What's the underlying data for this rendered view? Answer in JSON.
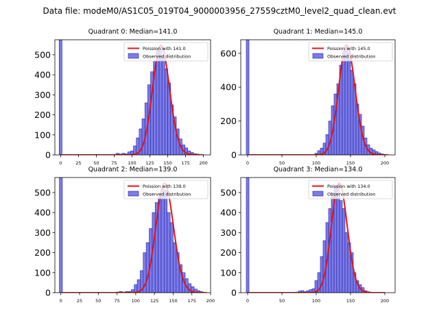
{
  "suptitle": "Data file: modeM0/AS1C05_019T04_9000003956_27559cztM0_level2_quad_clean.evt",
  "colors": {
    "bar_fill": "#7b7be8",
    "bar_edge": "#2020a0",
    "curve": "#e31212"
  },
  "chart_data": [
    {
      "type": "bar",
      "title": "Quadrant 0: Median=141.0",
      "xlim": [
        -8,
        210
      ],
      "ylim": [
        0,
        575
      ],
      "xticks": [
        0,
        25,
        50,
        75,
        100,
        125,
        150,
        175,
        200
      ],
      "yticks": [
        0,
        100,
        200,
        300,
        400,
        500
      ],
      "legend": {
        "position": "top-right",
        "curve_label": "Poission with 141.0",
        "bars_label": "Observed distribution"
      },
      "bin_width": 4,
      "bins": [
        {
          "x": 0,
          "count": 575
        },
        {
          "x": 76,
          "count": 3
        },
        {
          "x": 80,
          "count": 8
        },
        {
          "x": 84,
          "count": 4
        },
        {
          "x": 88,
          "count": 8
        },
        {
          "x": 92,
          "count": 5
        },
        {
          "x": 96,
          "count": 15
        },
        {
          "x": 100,
          "count": 20
        },
        {
          "x": 104,
          "count": 45
        },
        {
          "x": 108,
          "count": 85
        },
        {
          "x": 112,
          "count": 130
        },
        {
          "x": 116,
          "count": 180
        },
        {
          "x": 120,
          "count": 260
        },
        {
          "x": 124,
          "count": 350
        },
        {
          "x": 128,
          "count": 415
        },
        {
          "x": 132,
          "count": 470
        },
        {
          "x": 136,
          "count": 520
        },
        {
          "x": 140,
          "count": 540
        },
        {
          "x": 144,
          "count": 490
        },
        {
          "x": 148,
          "count": 430
        },
        {
          "x": 152,
          "count": 360
        },
        {
          "x": 156,
          "count": 250
        },
        {
          "x": 160,
          "count": 190
        },
        {
          "x": 164,
          "count": 130
        },
        {
          "x": 168,
          "count": 80
        },
        {
          "x": 172,
          "count": 50
        },
        {
          "x": 176,
          "count": 35
        },
        {
          "x": 180,
          "count": 20
        },
        {
          "x": 184,
          "count": 12
        },
        {
          "x": 188,
          "count": 6
        },
        {
          "x": 192,
          "count": 4
        },
        {
          "x": 196,
          "count": 2
        }
      ],
      "fit": {
        "mean": 141.0,
        "peak": 548,
        "x_range": [
          0,
          200
        ]
      }
    },
    {
      "type": "bar",
      "title": "Quadrant 1: Median=145.0",
      "xlim": [
        -10,
        215
      ],
      "ylim": [
        0,
        680
      ],
      "xticks": [
        0,
        50,
        100,
        150,
        200
      ],
      "yticks": [
        0,
        200,
        400,
        600
      ],
      "legend": {
        "position": "top-right",
        "curve_label": "Poission with 145.0",
        "bars_label": "Observed distribution"
      },
      "bin_width": 4,
      "bins": [
        {
          "x": 0,
          "count": 680
        },
        {
          "x": 100,
          "count": 10
        },
        {
          "x": 104,
          "count": 25
        },
        {
          "x": 108,
          "count": 40
        },
        {
          "x": 112,
          "count": 70
        },
        {
          "x": 116,
          "count": 120
        },
        {
          "x": 120,
          "count": 200
        },
        {
          "x": 124,
          "count": 290
        },
        {
          "x": 128,
          "count": 360
        },
        {
          "x": 132,
          "count": 420
        },
        {
          "x": 136,
          "count": 530
        },
        {
          "x": 140,
          "count": 600
        },
        {
          "x": 144,
          "count": 650
        },
        {
          "x": 148,
          "count": 600
        },
        {
          "x": 152,
          "count": 500
        },
        {
          "x": 156,
          "count": 420
        },
        {
          "x": 160,
          "count": 300
        },
        {
          "x": 164,
          "count": 240
        },
        {
          "x": 168,
          "count": 170
        },
        {
          "x": 172,
          "count": 100
        },
        {
          "x": 176,
          "count": 60
        },
        {
          "x": 180,
          "count": 40
        },
        {
          "x": 184,
          "count": 30
        },
        {
          "x": 188,
          "count": 20
        },
        {
          "x": 192,
          "count": 12
        },
        {
          "x": 196,
          "count": 6
        },
        {
          "x": 200,
          "count": 3
        }
      ],
      "fit": {
        "mean": 145.0,
        "peak": 648,
        "x_range": [
          0,
          205
        ]
      }
    },
    {
      "type": "bar",
      "title": "Quadrant 2: Median=139.0",
      "xlim": [
        -8,
        200
      ],
      "ylim": [
        0,
        575
      ],
      "xticks": [
        0,
        25,
        50,
        75,
        100,
        125,
        150,
        175,
        200
      ],
      "yticks": [
        0,
        100,
        200,
        300,
        400,
        500
      ],
      "legend": {
        "position": "top-right",
        "curve_label": "Poission with 139.0",
        "bars_label": "Observed distribution"
      },
      "bin_width": 4,
      "bins": [
        {
          "x": 0,
          "count": 575
        },
        {
          "x": 76,
          "count": 3
        },
        {
          "x": 80,
          "count": 6
        },
        {
          "x": 84,
          "count": 3
        },
        {
          "x": 88,
          "count": 6
        },
        {
          "x": 92,
          "count": 6
        },
        {
          "x": 96,
          "count": 15
        },
        {
          "x": 100,
          "count": 40
        },
        {
          "x": 104,
          "count": 65
        },
        {
          "x": 108,
          "count": 110
        },
        {
          "x": 112,
          "count": 200
        },
        {
          "x": 116,
          "count": 250
        },
        {
          "x": 120,
          "count": 320
        },
        {
          "x": 124,
          "count": 400
        },
        {
          "x": 128,
          "count": 450
        },
        {
          "x": 132,
          "count": 480
        },
        {
          "x": 136,
          "count": 520
        },
        {
          "x": 140,
          "count": 510
        },
        {
          "x": 144,
          "count": 400
        },
        {
          "x": 148,
          "count": 350
        },
        {
          "x": 152,
          "count": 250
        },
        {
          "x": 156,
          "count": 200
        },
        {
          "x": 160,
          "count": 140
        },
        {
          "x": 164,
          "count": 100
        },
        {
          "x": 168,
          "count": 70
        },
        {
          "x": 172,
          "count": 45
        },
        {
          "x": 176,
          "count": 30
        },
        {
          "x": 180,
          "count": 18
        },
        {
          "x": 184,
          "count": 10
        },
        {
          "x": 188,
          "count": 5
        }
      ],
      "fit": {
        "mean": 139.0,
        "peak": 545,
        "x_range": [
          0,
          195
        ]
      }
    },
    {
      "type": "bar",
      "title": "Quadrant 3: Median=134.0",
      "xlim": [
        -10,
        215
      ],
      "ylim": [
        0,
        575
      ],
      "xticks": [
        0,
        50,
        100,
        150,
        200
      ],
      "yticks": [
        0,
        100,
        200,
        300,
        400,
        500
      ],
      "legend": {
        "position": "top-right",
        "curve_label": "Poission with 134.0",
        "bars_label": "Observed distribution"
      },
      "bin_width": 4,
      "bins": [
        {
          "x": 0,
          "count": 575
        },
        {
          "x": 72,
          "count": 3
        },
        {
          "x": 76,
          "count": 8
        },
        {
          "x": 80,
          "count": 10
        },
        {
          "x": 84,
          "count": 5
        },
        {
          "x": 88,
          "count": 10
        },
        {
          "x": 92,
          "count": 15
        },
        {
          "x": 96,
          "count": 20
        },
        {
          "x": 100,
          "count": 60
        },
        {
          "x": 104,
          "count": 100
        },
        {
          "x": 108,
          "count": 180
        },
        {
          "x": 112,
          "count": 260
        },
        {
          "x": 116,
          "count": 350
        },
        {
          "x": 120,
          "count": 420
        },
        {
          "x": 124,
          "count": 500
        },
        {
          "x": 128,
          "count": 530
        },
        {
          "x": 132,
          "count": 540
        },
        {
          "x": 136,
          "count": 460
        },
        {
          "x": 140,
          "count": 420
        },
        {
          "x": 144,
          "count": 300
        },
        {
          "x": 148,
          "count": 250
        },
        {
          "x": 152,
          "count": 200
        },
        {
          "x": 156,
          "count": 100
        },
        {
          "x": 160,
          "count": 60
        },
        {
          "x": 164,
          "count": 40
        },
        {
          "x": 168,
          "count": 25
        },
        {
          "x": 172,
          "count": 10
        },
        {
          "x": 176,
          "count": 5
        }
      ],
      "fit": {
        "mean": 134.0,
        "peak": 548,
        "x_range": [
          0,
          200
        ]
      }
    }
  ]
}
